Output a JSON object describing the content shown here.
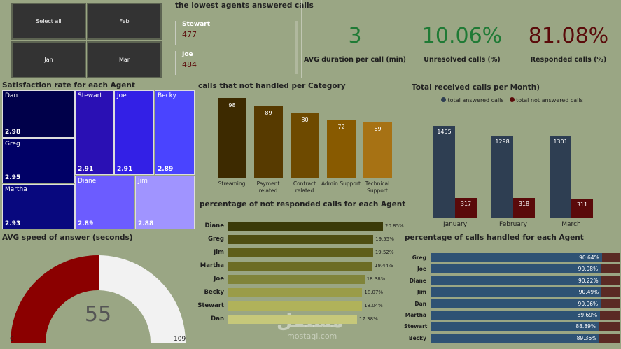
{
  "slicer": {
    "items": [
      "Select all",
      "Feb",
      "Jan",
      "Mar"
    ]
  },
  "lowest": {
    "title": "the lowest agents answered calls",
    "items": [
      {
        "name": "Stewart",
        "value": "477"
      },
      {
        "name": "Joe",
        "value": "484"
      }
    ]
  },
  "kpis": [
    {
      "value": "3",
      "label": "AVG duration per call (min)",
      "color": "#1f7a35"
    },
    {
      "value": "10.06%",
      "label": "Unresolved calls (%)",
      "color": "#1f7a35"
    },
    {
      "value": "81.08%",
      "label": "Responded calls (%)",
      "color": "#5a0a0a"
    }
  ],
  "satisfaction": {
    "title": "Satisfaction rate for each Agent",
    "items": [
      {
        "name": "Dan",
        "value": "2.98"
      },
      {
        "name": "Greg",
        "value": "2.95"
      },
      {
        "name": "Martha",
        "value": "2.93"
      },
      {
        "name": "Stewart",
        "value": "2.91"
      },
      {
        "name": "Joe",
        "value": "2.91"
      },
      {
        "name": "Becky",
        "value": "2.89"
      },
      {
        "name": "Diane",
        "value": "2.89"
      },
      {
        "name": "Jim",
        "value": "2.88"
      }
    ]
  },
  "gauge": {
    "title": "AVG speed of answer (seconds)",
    "value": 55,
    "min": 0,
    "max": 109,
    "value_label": "55",
    "min_label": "0",
    "max_label": "109",
    "fill_color": "#8b0000",
    "rest_color": "#f2f2f2"
  },
  "chart_data": [
    {
      "type": "bar",
      "title": "calls that not handled per Category",
      "categories": [
        "Streaming",
        "Payment related",
        "Contract related",
        "Admin Support",
        "Technical Support"
      ],
      "values": [
        98,
        89,
        80,
        72,
        69
      ],
      "colors": [
        "#3d2a00",
        "#573a00",
        "#6e4a00",
        "#885a00",
        "#a77214"
      ]
    },
    {
      "type": "bar",
      "orientation": "horizontal",
      "title": "percentage of not responded calls for each Agent",
      "categories": [
        "Diane",
        "Greg",
        "Jim",
        "Martha",
        "Joe",
        "Becky",
        "Stewart",
        "Dan"
      ],
      "values": [
        20.85,
        19.55,
        19.52,
        19.44,
        18.38,
        18.07,
        18.04,
        17.38
      ],
      "labels": [
        "20.85%",
        "19.55%",
        "19.52%",
        "19.44%",
        "18.38%",
        "18.07%",
        "18.04%",
        "17.38%"
      ]
    },
    {
      "type": "bar",
      "title": "Total received calls per Month)",
      "categories": [
        "January",
        "February",
        "March"
      ],
      "series": [
        {
          "name": "total answered calls",
          "values": [
            1455,
            1298,
            1301
          ],
          "color": "#2e3e52"
        },
        {
          "name": "total not answered calls",
          "values": [
            317,
            318,
            311
          ],
          "color": "#5a0a0a"
        }
      ],
      "legend": "top"
    },
    {
      "type": "bar",
      "orientation": "horizontal",
      "stacked": true,
      "title": "percentage of calls handled for each Agent",
      "categories": [
        "Greg",
        "Joe",
        "Diane",
        "Jim",
        "Dan",
        "Martha",
        "Stewart",
        "Becky"
      ],
      "values": [
        90.64,
        90.08,
        90.22,
        90.49,
        90.06,
        89.69,
        88.89,
        89.36
      ],
      "labels": [
        "90.64%",
        "90.08%",
        "90.22%",
        "90.49%",
        "90.06%",
        "89.69%",
        "88.89%",
        "89.36%"
      ],
      "colors": [
        "#2e5274",
        "#5a2a24"
      ]
    }
  ],
  "watermark": {
    "arabic": "مستقل",
    "latin": "mostaql.com"
  }
}
